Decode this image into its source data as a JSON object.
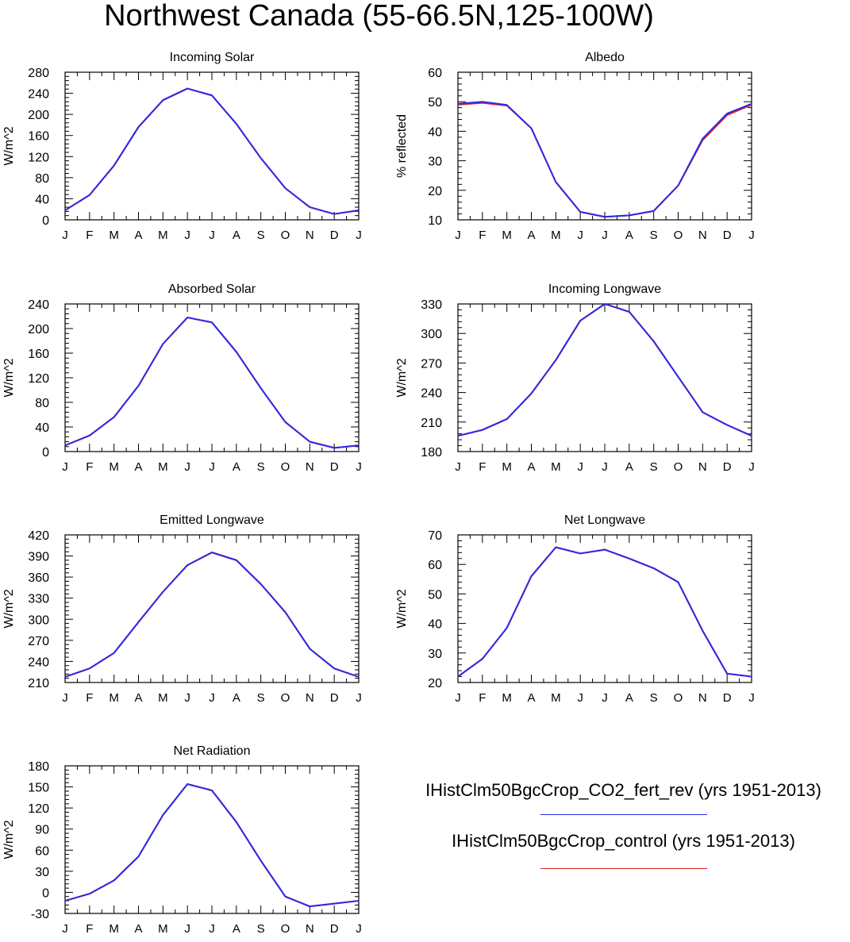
{
  "figure": {
    "title": "Northwest Canada (55-66.5N,125-100W)"
  },
  "colors": {
    "series_primary": "#2a2ae8",
    "series_control": "#e02020",
    "axis": "#000000"
  },
  "legend": {
    "entries": [
      {
        "label": "IHistClm50BgcCrop_CO2_fert_rev (yrs 1951-2013)",
        "color": "#2a2ae8"
      },
      {
        "label": "IHistClm50BgcCrop_control (yrs 1951-2013)",
        "color": "#e02020"
      }
    ]
  },
  "chart_data": [
    {
      "type": "line",
      "title": "Incoming Solar",
      "ylabel": "W/m^2",
      "xlabel": "",
      "categories": [
        "J",
        "F",
        "M",
        "A",
        "M",
        "J",
        "J",
        "A",
        "S",
        "O",
        "N",
        "D",
        "J"
      ],
      "ylim": [
        0,
        280
      ],
      "yticks": [
        0,
        40,
        80,
        120,
        160,
        200,
        240,
        280
      ],
      "series": [
        {
          "name": "IHistClm50BgcCrop_CO2_fert_rev (yrs 1951-2013)",
          "color": "#2a2ae8",
          "values": [
            18,
            47,
            103,
            176,
            227,
            249,
            236,
            182,
            117,
            60,
            24,
            11,
            18
          ]
        },
        {
          "name": "IHistClm50BgcCrop_control (yrs 1951-2013)",
          "color": "#e02020",
          "values": [
            18,
            47,
            103,
            176,
            227,
            249,
            236,
            182,
            117,
            60,
            24,
            11,
            18
          ]
        }
      ]
    },
    {
      "type": "line",
      "title": "Albedo",
      "ylabel": "% reflected",
      "xlabel": "",
      "categories": [
        "J",
        "F",
        "M",
        "A",
        "M",
        "J",
        "J",
        "A",
        "S",
        "O",
        "N",
        "D",
        "J"
      ],
      "ylim": [
        10,
        60
      ],
      "yticks": [
        10,
        20,
        30,
        40,
        50,
        60
      ],
      "series": [
        {
          "name": "IHistClm50BgcCrop_CO2_fert_rev (yrs 1951-2013)",
          "color": "#2a2ae8",
          "values": [
            49.3,
            50.0,
            48.9,
            41.0,
            22.8,
            12.7,
            11.0,
            11.5,
            13.0,
            21.6,
            37.5,
            46.0,
            49.3
          ]
        },
        {
          "name": "IHistClm50BgcCrop_control (yrs 1951-2013)",
          "color": "#e02020",
          "values": [
            49.0,
            49.6,
            48.7,
            41.0,
            22.8,
            12.7,
            11.0,
            11.5,
            13.0,
            21.6,
            37.0,
            45.5,
            49.0
          ]
        }
      ]
    },
    {
      "type": "line",
      "title": "Absorbed Solar",
      "ylabel": "W/m^2",
      "xlabel": "",
      "categories": [
        "J",
        "F",
        "M",
        "A",
        "M",
        "J",
        "J",
        "A",
        "S",
        "O",
        "N",
        "D",
        "J"
      ],
      "ylim": [
        0,
        240
      ],
      "yticks": [
        0,
        40,
        80,
        120,
        160,
        200,
        240
      ],
      "series": [
        {
          "name": "IHistClm50BgcCrop_CO2_fert_rev (yrs 1951-2013)",
          "color": "#2a2ae8",
          "values": [
            10,
            26,
            56,
            107,
            175,
            218,
            210,
            162,
            103,
            48,
            16,
            6,
            10
          ]
        },
        {
          "name": "IHistClm50BgcCrop_control (yrs 1951-2013)",
          "color": "#e02020",
          "values": [
            10,
            26,
            56,
            107,
            175,
            218,
            210,
            162,
            103,
            48,
            16,
            6,
            10
          ]
        }
      ]
    },
    {
      "type": "line",
      "title": "Incoming Longwave",
      "ylabel": "W/m^2",
      "xlabel": "",
      "categories": [
        "J",
        "F",
        "M",
        "A",
        "M",
        "J",
        "J",
        "A",
        "S",
        "O",
        "N",
        "D",
        "J"
      ],
      "ylim": [
        180,
        330
      ],
      "yticks": [
        180,
        210,
        240,
        270,
        300,
        330
      ],
      "series": [
        {
          "name": "IHistClm50BgcCrop_CO2_fert_rev (yrs 1951-2013)",
          "color": "#2a2ae8",
          "values": [
            196,
            202,
            213,
            239,
            273,
            313,
            330,
            322,
            292,
            256,
            220,
            207,
            196
          ]
        },
        {
          "name": "IHistClm50BgcCrop_control (yrs 1951-2013)",
          "color": "#e02020",
          "values": [
            196,
            202,
            213,
            239,
            273,
            313,
            330,
            322,
            292,
            256,
            220,
            207,
            196
          ]
        }
      ]
    },
    {
      "type": "line",
      "title": "Emitted Longwave",
      "ylabel": "W/m^2",
      "xlabel": "",
      "categories": [
        "J",
        "F",
        "M",
        "A",
        "M",
        "J",
        "J",
        "A",
        "S",
        "O",
        "N",
        "D",
        "J"
      ],
      "ylim": [
        210,
        420
      ],
      "yticks": [
        210,
        240,
        270,
        300,
        330,
        360,
        390,
        420
      ],
      "series": [
        {
          "name": "IHistClm50BgcCrop_CO2_fert_rev (yrs 1951-2013)",
          "color": "#2a2ae8",
          "values": [
            218,
            230,
            252,
            296,
            339,
            377,
            395,
            384,
            350,
            310,
            258,
            230,
            218
          ]
        },
        {
          "name": "IHistClm50BgcCrop_control (yrs 1951-2013)",
          "color": "#e02020",
          "values": [
            218,
            230,
            252,
            296,
            339,
            377,
            395,
            384,
            350,
            310,
            258,
            230,
            218
          ]
        }
      ]
    },
    {
      "type": "line",
      "title": "Net Longwave",
      "ylabel": "W/m^2",
      "xlabel": "",
      "categories": [
        "J",
        "F",
        "M",
        "A",
        "M",
        "J",
        "J",
        "A",
        "S",
        "O",
        "N",
        "D",
        "J"
      ],
      "ylim": [
        20,
        70
      ],
      "yticks": [
        20,
        30,
        40,
        50,
        60,
        70
      ],
      "series": [
        {
          "name": "IHistClm50BgcCrop_CO2_fert_rev (yrs 1951-2013)",
          "color": "#2a2ae8",
          "values": [
            22,
            28,
            38.5,
            56,
            65.8,
            63.7,
            65,
            62,
            58.7,
            54,
            37.5,
            23,
            22
          ]
        },
        {
          "name": "IHistClm50BgcCrop_control (yrs 1951-2013)",
          "color": "#e02020",
          "values": [
            22,
            28,
            38.5,
            56,
            65.8,
            63.7,
            65,
            62,
            58.7,
            54,
            37.5,
            23,
            22
          ]
        }
      ]
    },
    {
      "type": "line",
      "title": "Net Radiation",
      "ylabel": "W/m^2",
      "xlabel": "",
      "categories": [
        "J",
        "F",
        "M",
        "A",
        "M",
        "J",
        "J",
        "A",
        "S",
        "O",
        "N",
        "D",
        "J"
      ],
      "ylim": [
        -30,
        180
      ],
      "yticks": [
        -30,
        0,
        30,
        60,
        90,
        120,
        150,
        180
      ],
      "series": [
        {
          "name": "IHistClm50BgcCrop_CO2_fert_rev (yrs 1951-2013)",
          "color": "#2a2ae8",
          "values": [
            -12,
            -2,
            17,
            51,
            110,
            154,
            145,
            100,
            45,
            -6,
            -20,
            -16,
            -12
          ]
        },
        {
          "name": "IHistClm50BgcCrop_control (yrs 1951-2013)",
          "color": "#e02020",
          "values": [
            -12,
            -2,
            17,
            51,
            110,
            154,
            145,
            100,
            45,
            -6,
            -20,
            -16,
            -12
          ]
        }
      ]
    }
  ]
}
